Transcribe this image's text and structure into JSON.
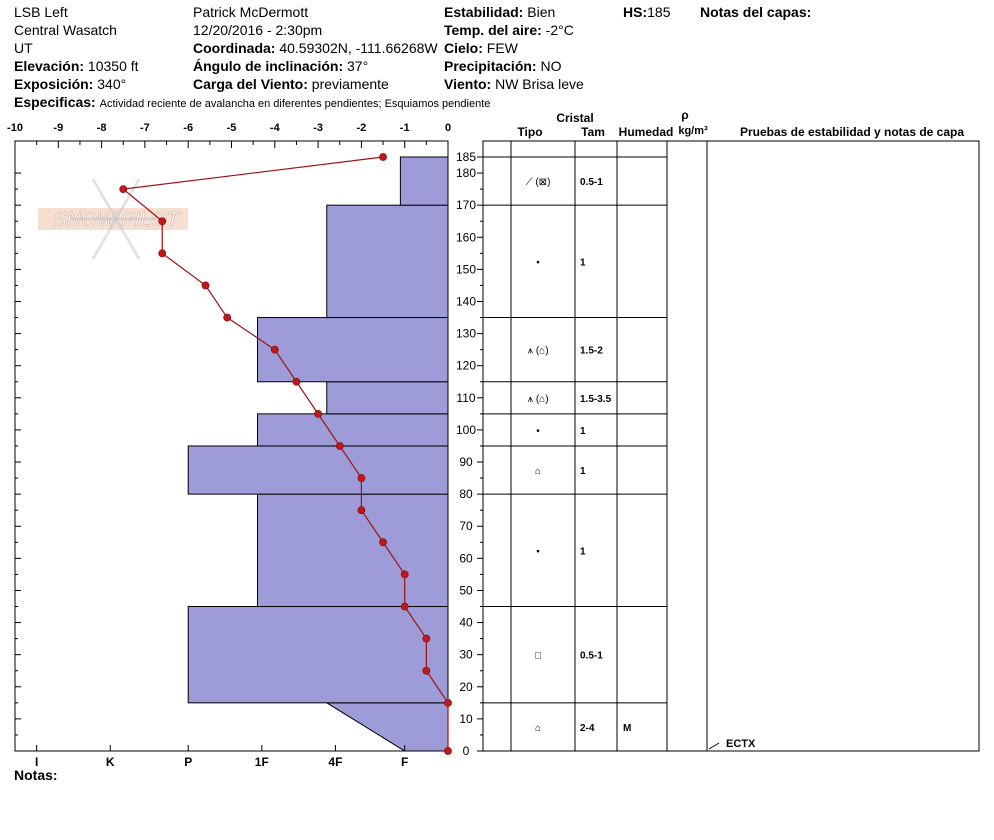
{
  "header": {
    "location": "LSB Left",
    "range": "Central Wasatch",
    "state": "UT",
    "elevation_label": "Elevación:",
    "elevation_value": "10350 ft",
    "aspect_label": "Exposición:",
    "aspect_value": "340°",
    "observer": "Patrick McDermott",
    "datetime": "12/20/2016 - 2:30pm",
    "coord_label": "Coordinada:",
    "coord_value": "40.59302N, -111.66268W",
    "angle_label": "Ángulo de inclinación:",
    "angle_value": "37°",
    "wind_load_label": "Carga del Viento:",
    "wind_load_value": "previamente",
    "stability_label": "Estabilidad:",
    "stability_value": "Bien",
    "air_temp_label": "Temp. del aire:",
    "air_temp_value": "-2°C",
    "sky_label": "Cielo:",
    "sky_value": "FEW",
    "precip_label": "Precipitación:",
    "precip_value": "NO",
    "wind_label": "Viento:",
    "wind_value": "NW Brisa leve",
    "hs_label": "HS:",
    "hs_value": "185",
    "layer_notes_label": "Notas del capas:",
    "specifics_label": "Especificas:",
    "specifics_value": "Actividad reciente de avalancha en diferentes pendientes;  Esquiamos pendiente"
  },
  "notes_label": "Notas:",
  "watermark": "SNOW PILOT",
  "colors": {
    "hardness_fill": "#9d9cd9",
    "temp_line": "#a01010",
    "temp_point": "#c01818"
  },
  "chart_data": {
    "type": "snow_profile",
    "temp_axis": {
      "ticks": [
        -10,
        -9,
        -8,
        -7,
        -6,
        -5,
        -4,
        -3,
        -2,
        -1,
        0
      ],
      "labels": [
        "-10",
        "-9",
        "-8",
        "-7",
        "-6",
        "-5",
        "-4",
        "-3",
        "-2",
        "-1",
        "0"
      ]
    },
    "hardness_axis": {
      "labels": [
        "I",
        "K",
        "P",
        "1F",
        "4F",
        "F"
      ],
      "values": [
        9.5,
        7.8,
        6,
        4.3,
        2.6,
        1
      ]
    },
    "height_axis": {
      "range": [
        0,
        185
      ],
      "ticks": [
        0,
        10,
        20,
        30,
        40,
        50,
        60,
        70,
        80,
        90,
        100,
        110,
        120,
        130,
        140,
        150,
        160,
        170,
        180,
        185
      ]
    },
    "hardness_layers": [
      {
        "bottom": 0,
        "top": 15,
        "hardness_bottom": 1,
        "hardness_top": 2.8
      },
      {
        "bottom": 15,
        "top": 45,
        "hardness": 6
      },
      {
        "bottom": 45,
        "top": 80,
        "hardness": 4.4
      },
      {
        "bottom": 80,
        "top": 95,
        "hardness": 6
      },
      {
        "bottom": 95,
        "top": 105,
        "hardness": 4.4
      },
      {
        "bottom": 105,
        "top": 115,
        "hardness": 2.8
      },
      {
        "bottom": 115,
        "top": 135,
        "hardness": 4.4
      },
      {
        "bottom": 135,
        "top": 170,
        "hardness": 2.8
      },
      {
        "bottom": 170,
        "top": 185,
        "hardness": 1.1
      }
    ],
    "temperature_profile": [
      {
        "height": 185,
        "temp": -1.5
      },
      {
        "height": 175,
        "temp": -7.5
      },
      {
        "height": 165,
        "temp": -6.6
      },
      {
        "height": 155,
        "temp": -6.6
      },
      {
        "height": 145,
        "temp": -5.6
      },
      {
        "height": 135,
        "temp": -5.1
      },
      {
        "height": 125,
        "temp": -4.0
      },
      {
        "height": 115,
        "temp": -3.5
      },
      {
        "height": 105,
        "temp": -3.0
      },
      {
        "height": 95,
        "temp": -2.5
      },
      {
        "height": 85,
        "temp": -2.0
      },
      {
        "height": 75,
        "temp": -2.0
      },
      {
        "height": 65,
        "temp": -1.5
      },
      {
        "height": 55,
        "temp": -1.0
      },
      {
        "height": 45,
        "temp": -1.0
      },
      {
        "height": 35,
        "temp": -0.5
      },
      {
        "height": 25,
        "temp": -0.5
      },
      {
        "height": 15,
        "temp": 0.0
      },
      {
        "height": 0,
        "temp": 0.0
      }
    ],
    "table_headers": {
      "crystal": "Cristal",
      "type": "Tipo",
      "size": "Tam",
      "moisture": "Humedad",
      "rho": "ρ",
      "density_unit": "kg/m³",
      "tests": "Pruebas de estabilidad y notas de capa"
    },
    "layers_table": [
      {
        "bottom": 170,
        "top": 185,
        "type": "⟋ (⊠)",
        "size": "0.5-1",
        "moisture": ""
      },
      {
        "bottom": 135,
        "top": 170,
        "type": "•",
        "size": "1",
        "moisture": ""
      },
      {
        "bottom": 115,
        "top": 135,
        "type": "⩚ (⌂)",
        "size": "1.5-2",
        "moisture": ""
      },
      {
        "bottom": 105,
        "top": 115,
        "type": "⩚ (⌂)",
        "size": "1.5-3.5",
        "moisture": ""
      },
      {
        "bottom": 95,
        "top": 105,
        "type": "•",
        "size": "1",
        "moisture": ""
      },
      {
        "bottom": 80,
        "top": 95,
        "type": "⌂",
        "size": "1",
        "moisture": ""
      },
      {
        "bottom": 45,
        "top": 80,
        "type": "•",
        "size": "1",
        "moisture": ""
      },
      {
        "bottom": 15,
        "top": 45,
        "type": "□",
        "size": "0.5-1",
        "moisture": ""
      },
      {
        "bottom": 0,
        "top": 15,
        "type": "⌂",
        "size": "2-4",
        "moisture": "M"
      }
    ],
    "stability_tests": [
      {
        "height": 0,
        "label": "ECTX"
      }
    ]
  }
}
